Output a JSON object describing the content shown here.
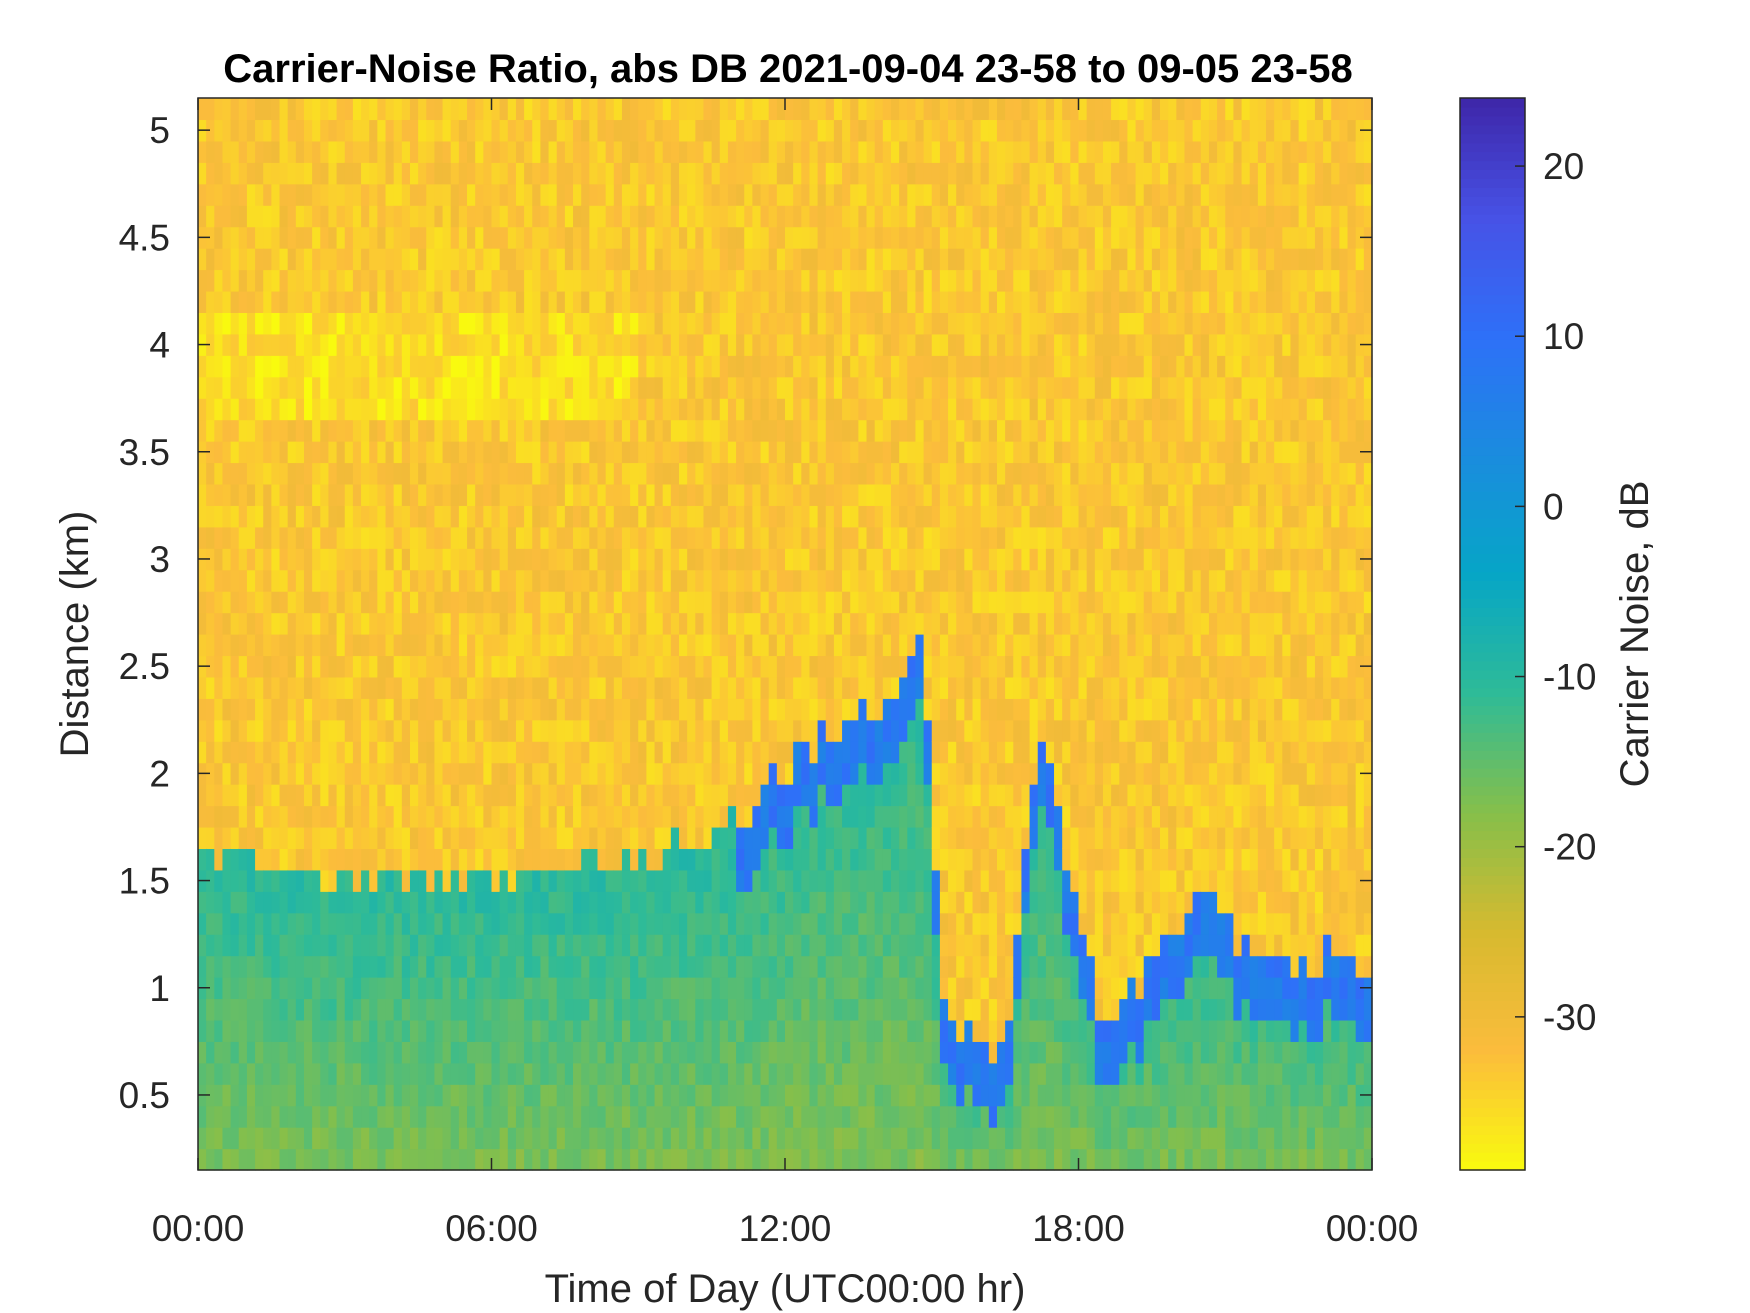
{
  "chart_data": {
    "type": "heatmap",
    "title": "Carrier-Noise Ratio, abs DB 2021-09-04 23-58 to 09-05 23-58",
    "xlabel": "Time of Day (UTC00:00 hr)",
    "ylabel": "Distance (km)",
    "colorbar_label": "Carrier Noise, dB",
    "x_range_hours": [
      0,
      24
    ],
    "x_ticks": [
      {
        "hour": 0,
        "label": "00:00"
      },
      {
        "hour": 6,
        "label": "06:00"
      },
      {
        "hour": 12,
        "label": "12:00"
      },
      {
        "hour": 18,
        "label": "18:00"
      },
      {
        "hour": 24,
        "label": "00:00"
      }
    ],
    "y_range_km": [
      0.15,
      5.15
    ],
    "y_ticks": [
      0.5,
      1,
      1.5,
      2,
      2.5,
      3,
      3.5,
      4,
      4.5,
      5
    ],
    "y_tick_labels": [
      "0.5",
      "1",
      "1.5",
      "2",
      "2.5",
      "3",
      "3.5",
      "4",
      "4.5",
      "5"
    ],
    "clim_db": [
      -39,
      24
    ],
    "colorbar_ticks": [
      20,
      10,
      0,
      -10,
      -20,
      -30
    ],
    "colorbar_tick_labels": [
      "20",
      "10",
      "0",
      "-10",
      "-20",
      "-30"
    ],
    "colormap": "parula-reversed",
    "colormap_stops": [
      "#f9fb0e",
      "#fbbc3c",
      "#d7ba2f",
      "#86bf4a",
      "#2fbb97",
      "#06a6c6",
      "#1a8cde",
      "#2e70f8",
      "#4752e6",
      "#3e26a8"
    ],
    "background_level_db": -33,
    "boundary_layer": {
      "description_points": [
        {
          "hour": 0,
          "top_km": 1.65
        },
        {
          "hour": 3,
          "top_km": 1.5
        },
        {
          "hour": 6,
          "top_km": 1.55
        },
        {
          "hour": 9,
          "top_km": 1.6
        },
        {
          "hour": 11,
          "top_km": 1.75
        },
        {
          "hour": 12,
          "top_km": 2.05
        },
        {
          "hour": 14,
          "top_km": 2.3
        },
        {
          "hour": 14.8,
          "top_km": 2.6
        },
        {
          "hour": 15.3,
          "top_km": 0.8
        },
        {
          "hour": 16.5,
          "top_km": 0.7
        },
        {
          "hour": 17.2,
          "top_km": 2.25
        },
        {
          "hour": 18.5,
          "top_km": 0.8
        },
        {
          "hour": 20.5,
          "top_km": 1.45
        },
        {
          "hour": 21.5,
          "top_km": 1.15
        },
        {
          "hour": 24,
          "top_km": 1.15
        }
      ],
      "mixed_layer_db": -12,
      "entrainment_db": 8
    }
  }
}
